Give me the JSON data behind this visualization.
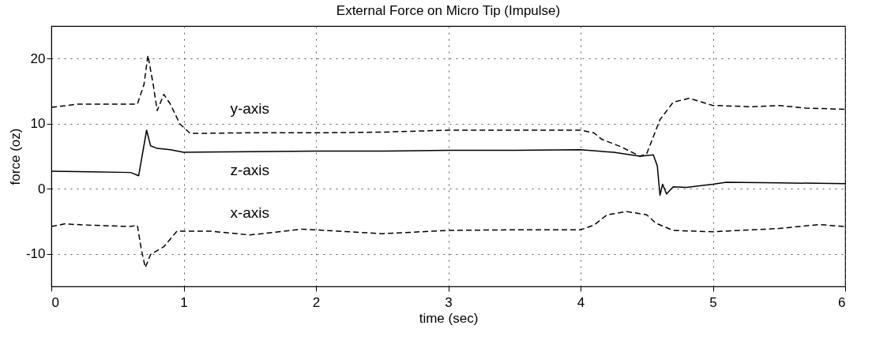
{
  "chart_data": {
    "type": "line",
    "title": "External Force on Micro Tip (Impulse)",
    "xlabel": "time (sec)",
    "ylabel": "force (oz)",
    "xlim": [
      0,
      6
    ],
    "xticks": [
      0,
      1,
      2,
      3,
      4,
      5,
      6
    ],
    "ylim": [
      -15,
      25
    ],
    "yticks": [
      -10,
      0,
      10,
      20
    ],
    "grid": true,
    "series": [
      {
        "name": "y-axis",
        "color": "#000000",
        "line_style": "dashed",
        "x": [
          0,
          0.2,
          0.5,
          0.65,
          0.7,
          0.73,
          0.77,
          0.8,
          0.85,
          0.9,
          0.97,
          1.05,
          1.5,
          2,
          2.5,
          3,
          3.5,
          4,
          4.1,
          4.16,
          4.3,
          4.45,
          4.5,
          4.6,
          4.7,
          4.82,
          5,
          5.3,
          5.5,
          5.7,
          6
        ],
        "values": [
          12.5,
          13,
          13,
          13,
          16,
          20.5,
          16,
          12,
          14.5,
          13,
          10,
          8.5,
          8.6,
          8.6,
          8.7,
          9,
          9,
          9,
          8.6,
          7.6,
          6.5,
          5,
          5.4,
          10.6,
          13.3,
          13.9,
          12.8,
          12.6,
          12.8,
          12.4,
          12.2
        ]
      },
      {
        "name": "z-axis",
        "color": "#000000",
        "line_style": "solid",
        "x": [
          0,
          0.3,
          0.6,
          0.66,
          0.72,
          0.75,
          0.8,
          0.9,
          1,
          1.5,
          2,
          2.5,
          3,
          3.5,
          4,
          4.25,
          4.45,
          4.55,
          4.58,
          4.6,
          4.62,
          4.65,
          4.7,
          4.8,
          5,
          5.1,
          5.5,
          6
        ],
        "values": [
          2.7,
          2.6,
          2.5,
          2.0,
          9,
          6.6,
          6.2,
          6,
          5.6,
          5.7,
          5.8,
          5.8,
          5.9,
          5.9,
          6,
          5.6,
          5,
          5.2,
          3.5,
          -1,
          0.7,
          -0.8,
          0.3,
          0.2,
          0.7,
          1,
          0.9,
          0.8
        ]
      },
      {
        "name": "x-axis",
        "color": "#000000",
        "line_style": "dashed",
        "x": [
          0,
          0.1,
          0.3,
          0.6,
          0.65,
          0.68,
          0.71,
          0.75,
          0.85,
          0.95,
          1.2,
          1.5,
          1.9,
          2.5,
          3,
          3.5,
          4,
          4.1,
          4.2,
          4.35,
          4.5,
          4.57,
          4.7,
          5,
          5.5,
          5.8,
          6
        ],
        "values": [
          -5.8,
          -5.4,
          -5.6,
          -5.8,
          -5.6,
          -9.3,
          -12.1,
          -10.1,
          -8.9,
          -6.5,
          -6.5,
          -7.1,
          -6.2,
          -6.9,
          -6.4,
          -6.3,
          -6.3,
          -5.6,
          -4,
          -3.5,
          -4,
          -5.3,
          -6.4,
          -6.6,
          -6.1,
          -5.5,
          -5.8
        ]
      }
    ]
  }
}
